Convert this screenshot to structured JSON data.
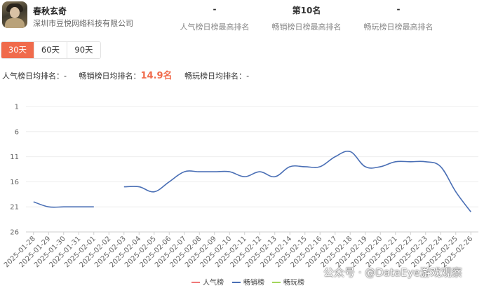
{
  "header": {
    "game_name": "春秋玄奇",
    "company": "深圳市豆悦网络科技有限公司",
    "ranks": [
      {
        "value": "-",
        "label": "人气榜日榜最高排名"
      },
      {
        "value": "第10名",
        "label": "畅销榜日榜最高排名"
      },
      {
        "value": "-",
        "label": "畅玩榜日榜最高排名"
      }
    ]
  },
  "range_tabs": [
    {
      "label": "30天",
      "active": true
    },
    {
      "label": "60天",
      "active": false
    },
    {
      "label": "90天",
      "active": false
    }
  ],
  "averages": {
    "popularity_label": "人气榜日均排名：",
    "popularity_value": "-",
    "sales_label": "畅销榜日均排名：",
    "sales_value": "14.9名",
    "play_label": "畅玩榜日均排名：",
    "play_value": "-"
  },
  "colors": {
    "accent": "#f06b4c",
    "series_popularity": "#f07878",
    "series_sales": "#4a6fb5",
    "series_play": "#a3d65c"
  },
  "watermark": "公众号 · @DataEye游戏观察",
  "chart_data": {
    "type": "line",
    "y_reversed": true,
    "ylim": [
      1,
      26
    ],
    "yticks": [
      1,
      6,
      11,
      16,
      21,
      26
    ],
    "grid": true,
    "legend_position": "bottom-center",
    "x": [
      "2025-01-28",
      "2025-01-29",
      "2025-01-30",
      "2025-01-31",
      "2025-02-01",
      "2025-02-02",
      "2025-02-03",
      "2025-02-04",
      "2025-02-05",
      "2025-02-06",
      "2025-02-07",
      "2025-02-08",
      "2025-02-09",
      "2025-02-10",
      "2025-02-11",
      "2025-02-12",
      "2025-02-13",
      "2025-02-14",
      "2025-02-15",
      "2025-02-16",
      "2025-02-17",
      "2025-02-18",
      "2025-02-19",
      "2025-02-20",
      "2025-02-21",
      "2025-02-22",
      "2025-02-23",
      "2025-02-24",
      "2025-02-25",
      "2025-02-26"
    ],
    "series": [
      {
        "name": "人气榜",
        "values": [
          null,
          null,
          null,
          null,
          null,
          null,
          null,
          null,
          null,
          null,
          null,
          null,
          null,
          null,
          null,
          null,
          null,
          null,
          null,
          null,
          null,
          null,
          null,
          null,
          null,
          null,
          null,
          null,
          null,
          null
        ]
      },
      {
        "name": "畅销榜",
        "values": [
          20,
          21,
          21,
          21,
          21,
          null,
          17,
          17,
          18,
          16,
          14,
          14,
          14,
          14,
          15,
          14,
          15,
          13,
          13,
          13,
          11,
          10,
          13,
          13,
          12,
          12,
          12,
          13,
          18,
          22
        ]
      },
      {
        "name": "畅玩榜",
        "values": [
          null,
          null,
          null,
          null,
          null,
          null,
          null,
          null,
          null,
          null,
          null,
          null,
          null,
          null,
          null,
          null,
          null,
          null,
          null,
          null,
          null,
          null,
          null,
          null,
          null,
          null,
          null,
          null,
          null,
          null
        ]
      }
    ]
  }
}
